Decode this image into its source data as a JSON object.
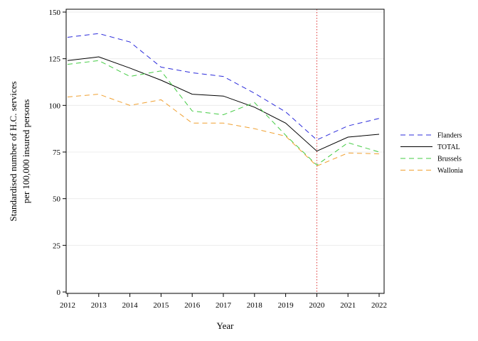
{
  "chart_data": {
    "type": "line",
    "xlabel": "Year",
    "ylabel_lines": [
      "Standardised number of H.C. services",
      "per 100,000 insured persons"
    ],
    "x": [
      2012,
      2013,
      2014,
      2015,
      2016,
      2017,
      2018,
      2019,
      2020,
      2021,
      2022
    ],
    "xticks": [
      "2012",
      "2013",
      "2014",
      "2015",
      "2016",
      "2017",
      "2018",
      "2019",
      "2020",
      "2021",
      "2022"
    ],
    "ylim": [
      0,
      150
    ],
    "yticks": [
      0,
      25,
      50,
      75,
      100,
      125,
      150
    ],
    "reference_line": {
      "x": 2020,
      "color": "#dd3333",
      "style": "dotted"
    },
    "grid": "horizontal",
    "legend_position": "right",
    "series": [
      {
        "name": "Flanders",
        "color": "#2b2bdb",
        "dash": "dashed",
        "values": [
          136.5,
          138.5,
          134,
          120.5,
          117.5,
          115.5,
          106.5,
          96.5,
          81.5,
          89,
          93
        ]
      },
      {
        "name": "TOTAL",
        "color": "#000000",
        "dash": "solid",
        "values": [
          124,
          126,
          120,
          113.5,
          106,
          105,
          99,
          90.5,
          75.5,
          83,
          84.5
        ]
      },
      {
        "name": "Brussels",
        "color": "#44cc44",
        "dash": "dashed",
        "values": [
          122,
          124,
          115.5,
          118.5,
          97,
          95,
          101.5,
          84,
          68,
          80,
          75
        ]
      },
      {
        "name": "Wallonia",
        "color": "#f0a030",
        "dash": "dashed",
        "values": [
          104.5,
          106,
          100,
          103,
          90.5,
          90.5,
          87.5,
          83.5,
          67.5,
          74.5,
          74
        ]
      }
    ]
  }
}
